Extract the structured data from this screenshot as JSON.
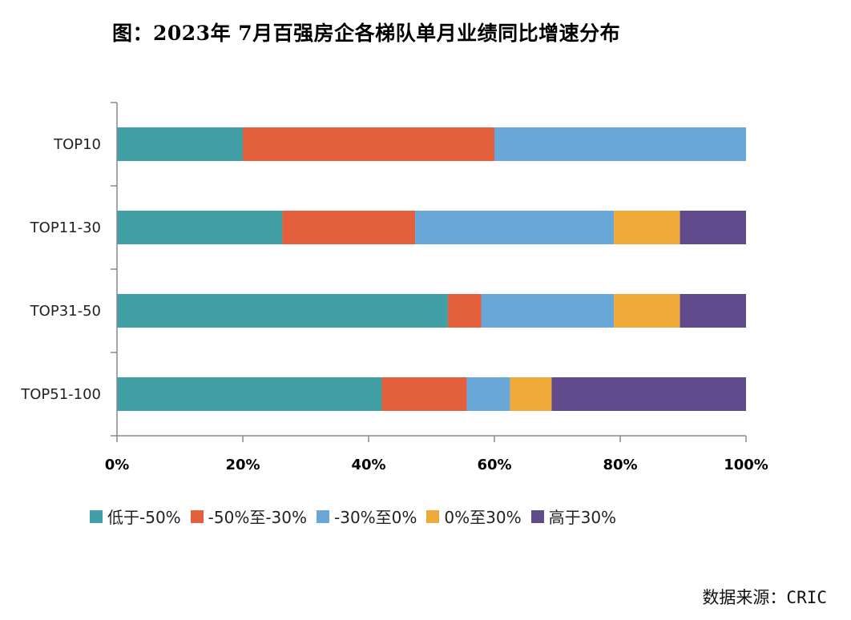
{
  "title": "图：2023年 7月百强房企各梯队单月业绩同比增速分布",
  "source": "数据来源：CRIC",
  "chart_data": {
    "type": "bar",
    "orientation": "horizontal",
    "stacked": true,
    "normalized": true,
    "categories": [
      "TOP10",
      "TOP11-30",
      "TOP31-50",
      "TOP51-100"
    ],
    "series": [
      {
        "name": "低于-50%",
        "color": "#419FA6",
        "values": [
          20,
          26.3,
          52.6,
          42.1
        ]
      },
      {
        "name": "-50%至-30%",
        "color": "#E45F3C",
        "values": [
          40,
          21.1,
          5.3,
          13.5
        ]
      },
      {
        "name": "-30%至0%",
        "color": "#69A7D8",
        "values": [
          40,
          31.6,
          21.1,
          6.9
        ]
      },
      {
        "name": "0%至30%",
        "color": "#F0AA3A",
        "values": [
          0,
          10.5,
          10.5,
          6.6
        ]
      },
      {
        "name": "高于30%",
        "color": "#624B8C",
        "values": [
          0,
          10.5,
          10.5,
          30.9
        ]
      }
    ],
    "x_ticks": [
      "0%",
      "20%",
      "40%",
      "60%",
      "80%",
      "100%"
    ],
    "xlim": [
      0,
      100
    ],
    "legend_position": "bottom",
    "grid": false
  }
}
